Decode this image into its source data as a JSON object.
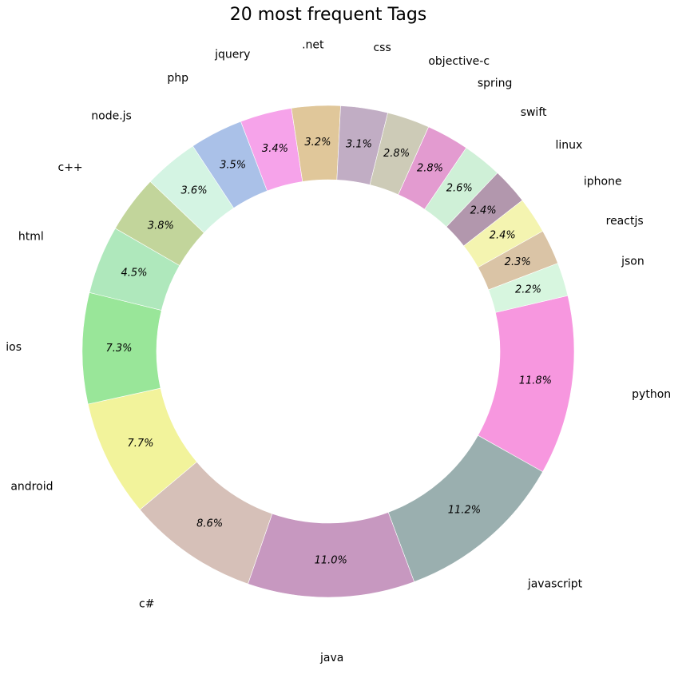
{
  "chart_data": {
    "type": "pie",
    "style": "donut",
    "title": "20 most frequent Tags",
    "legend": "none",
    "slices": [
      {
        "label": "python",
        "value": 11.8,
        "pct_label": "11.8%",
        "color": "#f797df"
      },
      {
        "label": "javascript",
        "value": 11.2,
        "pct_label": "11.2%",
        "color": "#9aafaf"
      },
      {
        "label": "java",
        "value": 11.0,
        "pct_label": "11.0%",
        "color": "#c798c0"
      },
      {
        "label": "c#",
        "value": 8.6,
        "pct_label": "8.6%",
        "color": "#d6c0b8"
      },
      {
        "label": "android",
        "value": 7.7,
        "pct_label": "7.7%",
        "color": "#f2f39b"
      },
      {
        "label": "ios",
        "value": 7.3,
        "pct_label": "7.3%",
        "color": "#99e699"
      },
      {
        "label": "html",
        "value": 4.5,
        "pct_label": "4.5%",
        "color": "#afe8bc"
      },
      {
        "label": "c++",
        "value": 3.8,
        "pct_label": "3.8%",
        "color": "#c2d59b"
      },
      {
        "label": "node.js",
        "value": 3.6,
        "pct_label": "3.6%",
        "color": "#d4f4e3"
      },
      {
        "label": "php",
        "value": 3.5,
        "pct_label": "3.5%",
        "color": "#aac1e8"
      },
      {
        "label": "jquery",
        "value": 3.4,
        "pct_label": "3.4%",
        "color": "#f6a3ea"
      },
      {
        "label": ".net",
        "value": 3.2,
        "pct_label": "3.2%",
        "color": "#e0c79a"
      },
      {
        "label": "css",
        "value": 3.1,
        "pct_label": "3.1%",
        "color": "#c1adc4"
      },
      {
        "label": "objective-c",
        "value": 2.8,
        "pct_label": "2.8%",
        "color": "#cdcbb7"
      },
      {
        "label": "spring",
        "value": 2.8,
        "pct_label": "2.8%",
        "color": "#e39bd0"
      },
      {
        "label": "swift",
        "value": 2.6,
        "pct_label": "2.6%",
        "color": "#cff0d7"
      },
      {
        "label": "linux",
        "value": 2.4,
        "pct_label": "2.4%",
        "color": "#b297ad"
      },
      {
        "label": "iphone",
        "value": 2.4,
        "pct_label": "2.4%",
        "color": "#f4f4b0"
      },
      {
        "label": "reactjs",
        "value": 2.3,
        "pct_label": "2.3%",
        "color": "#dac4a6"
      },
      {
        "label": "json",
        "value": 2.2,
        "pct_label": "2.2%",
        "color": "#d7f6df"
      }
    ]
  }
}
